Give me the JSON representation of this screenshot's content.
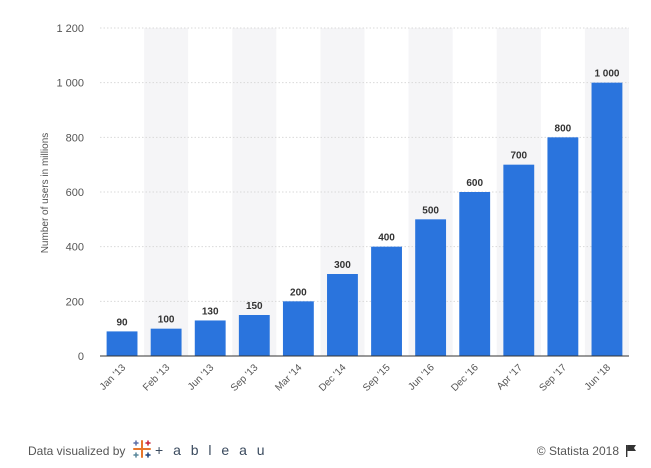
{
  "chart_data": {
    "type": "bar",
    "title": "",
    "xlabel": "",
    "ylabel": "Number of users in millions",
    "categories": [
      "Jan '13",
      "Feb '13",
      "Jun '13",
      "Sep '13",
      "Mar '14",
      "Dec '14",
      "Sep '15",
      "Jun '16",
      "Dec '16",
      "Apr '17",
      "Sep '17",
      "Jun '18"
    ],
    "values": [
      90,
      100,
      130,
      150,
      200,
      300,
      400,
      500,
      600,
      700,
      800,
      1000
    ],
    "value_labels": [
      "90",
      "100",
      "130",
      "150",
      "200",
      "300",
      "400",
      "500",
      "600",
      "700",
      "800",
      "1 000"
    ],
    "ylim": [
      0,
      1200
    ],
    "yticks": [
      0,
      200,
      400,
      600,
      800,
      1000,
      1200
    ],
    "ytick_labels": [
      "0",
      "200",
      "400",
      "600",
      "800",
      "1 000",
      "1 200"
    ],
    "grid": true,
    "alternating_band_shading": true,
    "colors": {
      "bar": "#2a74dd",
      "band": "#f5f5f7",
      "grid": "#d9d9d9",
      "axis": "#333333",
      "tick_text": "#555555",
      "value_label": "#333333"
    }
  },
  "footer": {
    "data_visualized_by": "Data visualized by",
    "tableau_wordmark": "+ a b l e a u",
    "copyright": "© Statista 2018",
    "flag_icon": "flag-icon"
  }
}
